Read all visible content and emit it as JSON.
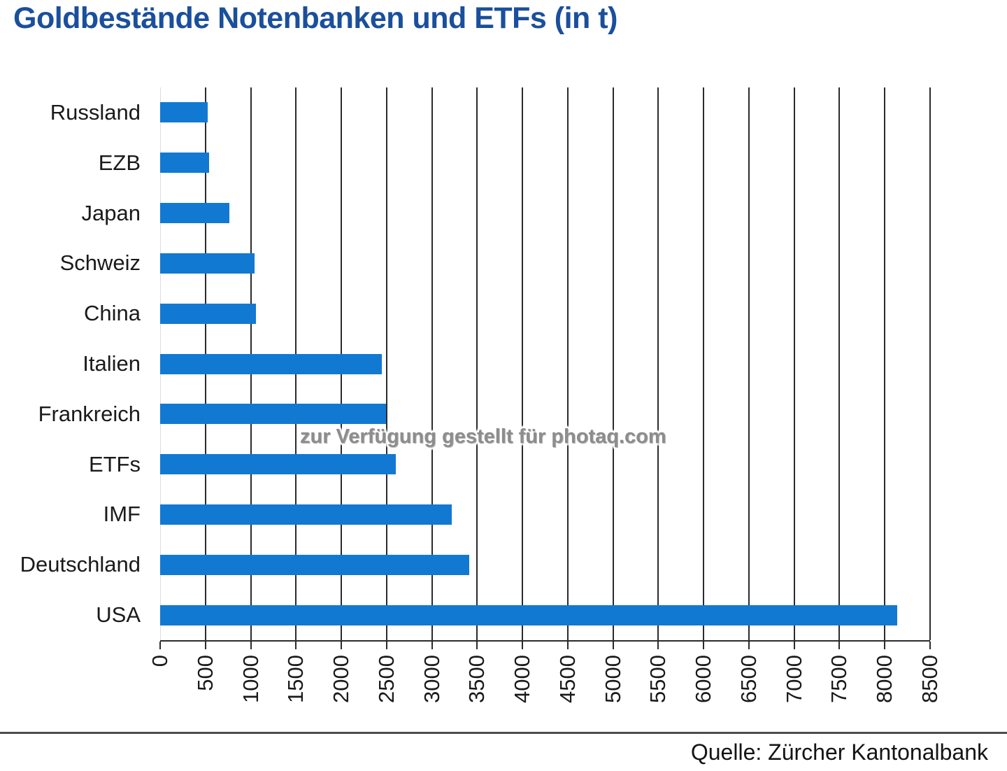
{
  "watermark": "zur Verfügung gestellt für photaq.com",
  "source": "Quelle: Zürcher Kantonalbank",
  "colors": {
    "title": "#1a4f9c",
    "bar": "#1279d2",
    "axis": "#2b2b2b",
    "label": "#1a1a1a",
    "watermark": "#8d8d8d",
    "divider": "#4d4d4d"
  },
  "chart_data": {
    "type": "bar",
    "orientation": "horizontal",
    "title": "Goldbestände Notenbanken und ETFs (in t)",
    "categories": [
      "Russland",
      "EZB",
      "Japan",
      "Schweiz",
      "China",
      "Italien",
      "Frankreich",
      "ETFs",
      "IMF",
      "Deutschland",
      "USA"
    ],
    "values": [
      525,
      540,
      765,
      1040,
      1055,
      2450,
      2490,
      2600,
      3220,
      3410,
      8135
    ],
    "unit": "t",
    "xlabel": "",
    "ylabel": "",
    "xlim": [
      0,
      8500
    ],
    "x_ticks": [
      0,
      500,
      1000,
      1500,
      2000,
      2500,
      3000,
      3500,
      4000,
      4500,
      5000,
      5500,
      6000,
      6500,
      7000,
      7500,
      8000,
      8500
    ],
    "grid": "vertical",
    "legend": "none",
    "bar_color": "#1279d2"
  }
}
